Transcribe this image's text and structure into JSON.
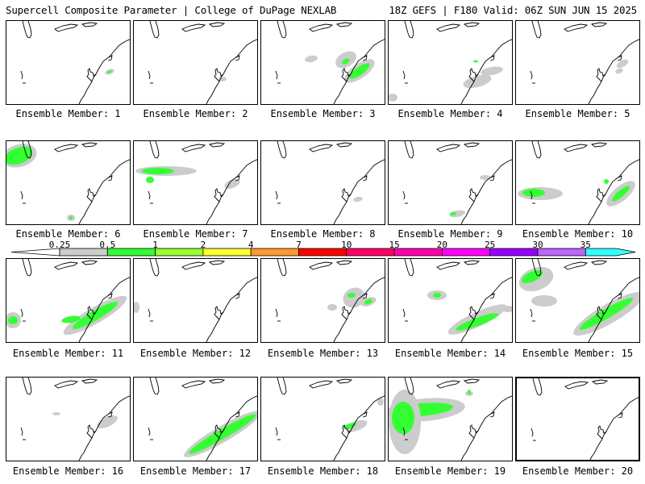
{
  "header": {
    "left": "Supercell Composite Parameter | College of DuPage NEXLAB",
    "right": "18Z GEFS | F180 Valid: 06Z SUN JUN 15 2025"
  },
  "colorbar": {
    "labels": [
      "0.25",
      "0.5",
      "1",
      "2",
      "4",
      "7",
      "10",
      "15",
      "20",
      "25",
      "30",
      "35"
    ],
    "colors": [
      "#cccccc",
      "#33ff33",
      "#99ff33",
      "#ffff33",
      "#ff9933",
      "#ff0000",
      "#ff0066",
      "#ff00aa",
      "#ff00ff",
      "#9900ff",
      "#bb66ff",
      "#33ffff"
    ]
  },
  "members": [
    {
      "caption": "Ensemble Member: 1"
    },
    {
      "caption": "Ensemble Member: 2"
    },
    {
      "caption": "Ensemble Member: 3"
    },
    {
      "caption": "Ensemble Member: 4"
    },
    {
      "caption": "Ensemble Member: 5"
    },
    {
      "caption": "Ensemble Member: 6"
    },
    {
      "caption": "Ensemble Member: 7"
    },
    {
      "caption": "Ensemble Member: 8"
    },
    {
      "caption": "Ensemble Member: 9"
    },
    {
      "caption": "Ensemble Member: 10"
    },
    {
      "caption": "Ensemble Member: 11"
    },
    {
      "caption": "Ensemble Member: 12"
    },
    {
      "caption": "Ensemble Member: 13"
    },
    {
      "caption": "Ensemble Member: 14"
    },
    {
      "caption": "Ensemble Member: 15"
    },
    {
      "caption": "Ensemble Member: 16"
    },
    {
      "caption": "Ensemble Member: 17"
    },
    {
      "caption": "Ensemble Member: 18"
    },
    {
      "caption": "Ensemble Member: 19"
    },
    {
      "caption": "Ensemble Member: 20"
    }
  ]
}
